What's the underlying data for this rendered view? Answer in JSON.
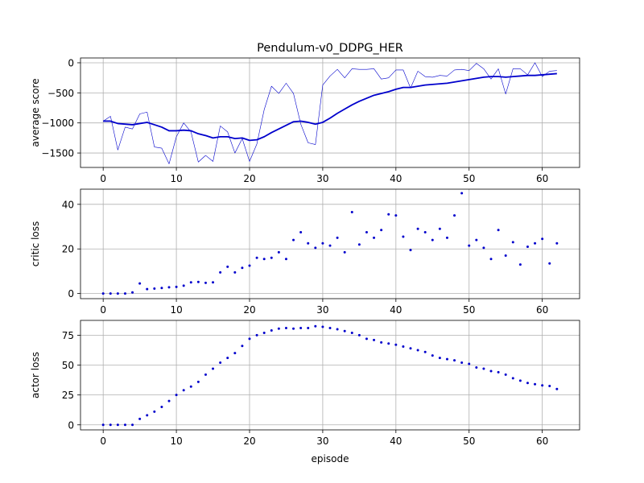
{
  "title": "Pendulum-v0_DDPG_HER",
  "colors": {
    "series": "#0000cc",
    "grid": "#b0b0b0",
    "axes": "#000000"
  },
  "x_ticks": [
    0,
    10,
    20,
    30,
    40,
    50,
    60
  ],
  "xlabel": "episode",
  "chart_data": [
    {
      "type": "line",
      "ylabel": "average score",
      "xlim": [
        -3.1,
        65.1
      ],
      "ylim": [
        -1740,
        80
      ],
      "yticks": [
        0,
        -500,
        -1000,
        -1500
      ],
      "ytick_labels": [
        "0",
        "−500",
        "−1000",
        "−1500"
      ],
      "grid": true,
      "x": [
        0,
        1,
        2,
        3,
        4,
        5,
        6,
        7,
        8,
        9,
        10,
        11,
        12,
        13,
        14,
        15,
        16,
        17,
        18,
        19,
        20,
        21,
        22,
        23,
        24,
        25,
        26,
        27,
        28,
        29,
        30,
        31,
        32,
        33,
        34,
        35,
        36,
        37,
        38,
        39,
        40,
        41,
        42,
        43,
        44,
        45,
        46,
        47,
        48,
        49,
        50,
        51,
        52,
        53,
        54,
        55,
        56,
        57,
        58,
        59,
        60,
        61,
        62
      ],
      "series": [
        {
          "style": "thin",
          "values": [
            -970,
            -890,
            -1450,
            -1070,
            -1100,
            -850,
            -820,
            -1400,
            -1420,
            -1680,
            -1230,
            -1000,
            -1150,
            -1650,
            -1540,
            -1640,
            -1050,
            -1150,
            -1500,
            -1260,
            -1640,
            -1350,
            -780,
            -390,
            -510,
            -340,
            -510,
            -1020,
            -1330,
            -1360,
            -370,
            -220,
            -110,
            -250,
            -100,
            -110,
            -110,
            -100,
            -270,
            -250,
            -120,
            -120,
            -420,
            -140,
            -230,
            -240,
            -210,
            -220,
            -120,
            -110,
            -130,
            -10,
            -100,
            -270,
            -100,
            -520,
            -100,
            -100,
            -200,
            0,
            -230,
            -140,
            -130
          ]
        },
        {
          "style": "thick",
          "values": [
            -970,
            -970,
            -1010,
            -1020,
            -1030,
            -1010,
            -990,
            -1030,
            -1070,
            -1130,
            -1130,
            -1120,
            -1130,
            -1180,
            -1210,
            -1250,
            -1230,
            -1230,
            -1260,
            -1250,
            -1290,
            -1280,
            -1230,
            -1160,
            -1100,
            -1040,
            -980,
            -970,
            -990,
            -1020,
            -990,
            -920,
            -840,
            -770,
            -700,
            -640,
            -590,
            -540,
            -510,
            -480,
            -440,
            -410,
            -410,
            -390,
            -370,
            -360,
            -350,
            -340,
            -320,
            -300,
            -280,
            -260,
            -240,
            -230,
            -230,
            -240,
            -230,
            -220,
            -210,
            -210,
            -200,
            -190,
            -180
          ]
        }
      ]
    },
    {
      "type": "scatter",
      "ylabel": "critic loss",
      "xlim": [
        -3.1,
        65.1
      ],
      "ylim": [
        -2.3,
        46.8
      ],
      "yticks": [
        0,
        20,
        40
      ],
      "ytick_labels": [
        "0",
        "20",
        "40"
      ],
      "grid": true,
      "x": [
        0,
        1,
        2,
        3,
        4,
        5,
        6,
        7,
        8,
        9,
        10,
        11,
        12,
        13,
        14,
        15,
        16,
        17,
        18,
        19,
        20,
        21,
        22,
        23,
        24,
        25,
        26,
        27,
        28,
        29,
        30,
        31,
        32,
        33,
        34,
        35,
        36,
        37,
        38,
        39,
        40,
        41,
        42,
        43,
        44,
        45,
        46,
        47,
        48,
        49,
        50,
        51,
        52,
        53,
        54,
        55,
        56,
        57,
        58,
        59,
        60,
        61,
        62
      ],
      "values": [
        0,
        0,
        0,
        0,
        0.5,
        4.5,
        2,
        2.2,
        2.5,
        2.8,
        3,
        3.5,
        5,
        5.2,
        4.8,
        5,
        9.5,
        12,
        9.5,
        11.5,
        12.5,
        16,
        15.5,
        16,
        18.5,
        15.5,
        24,
        27.5,
        22.5,
        20.5,
        22.5,
        21.5,
        25,
        18.5,
        36.5,
        22,
        27.5,
        25,
        28.5,
        35.5,
        35,
        25.5,
        19.5,
        29,
        27.5,
        24,
        29,
        25,
        35,
        45,
        21.5,
        24,
        20.5,
        15.5,
        28.5,
        17,
        23,
        13,
        21,
        22.5,
        24.5,
        13.5,
        22.5
      ]
    },
    {
      "type": "scatter",
      "ylabel": "actor loss",
      "xlim": [
        -3.1,
        65.1
      ],
      "ylim": [
        -4.2,
        87.4
      ],
      "yticks": [
        0,
        25,
        50,
        75
      ],
      "ytick_labels": [
        "0",
        "25",
        "50",
        "75"
      ],
      "grid": true,
      "x": [
        0,
        1,
        2,
        3,
        4,
        5,
        6,
        7,
        8,
        9,
        10,
        11,
        12,
        13,
        14,
        15,
        16,
        17,
        18,
        19,
        20,
        21,
        22,
        23,
        24,
        25,
        26,
        27,
        28,
        29,
        30,
        31,
        32,
        33,
        34,
        35,
        36,
        37,
        38,
        39,
        40,
        41,
        42,
        43,
        44,
        45,
        46,
        47,
        48,
        49,
        50,
        51,
        52,
        53,
        54,
        55,
        56,
        57,
        58,
        59,
        60,
        61,
        62
      ],
      "values": [
        0,
        0,
        0,
        0,
        0,
        5,
        8,
        11,
        15,
        20,
        25,
        29,
        32,
        36,
        42,
        47,
        52,
        56,
        60,
        66,
        72,
        75,
        77,
        79,
        80.5,
        81,
        80.5,
        81,
        81,
        82.5,
        82,
        81,
        80,
        78.5,
        77,
        75,
        72,
        71,
        69,
        68,
        67,
        65.5,
        64,
        62.5,
        61,
        58,
        56,
        55,
        54,
        52,
        51,
        48,
        47,
        45,
        44,
        42,
        39,
        37,
        35,
        34,
        33,
        32.5,
        30
      ]
    }
  ]
}
